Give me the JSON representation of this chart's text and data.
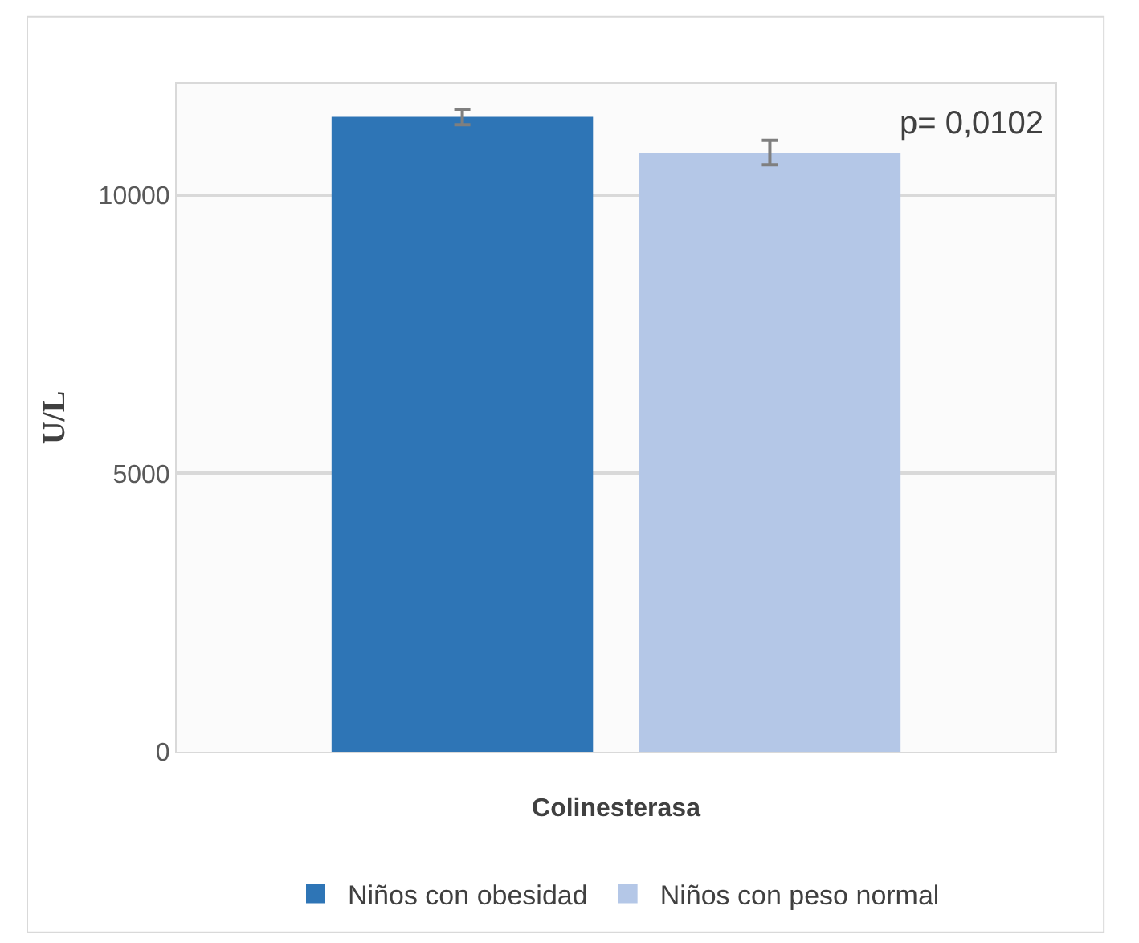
{
  "chart_data": {
    "type": "bar",
    "ylabel": "U/L",
    "categories": [
      "Colinesterasa"
    ],
    "series": [
      {
        "name": "Niños con obesidad",
        "color": "#2e75b6",
        "values": [
          11400
        ],
        "errors": [
          140
        ]
      },
      {
        "name": "Niños con peso normal",
        "color": "#b4c7e7",
        "values": [
          10760
        ],
        "errors": [
          220
        ]
      }
    ],
    "ylim": [
      0,
      12000
    ],
    "yticks": [
      0,
      5000,
      10000
    ],
    "grid": "y",
    "legend": "bottom",
    "annotations": [
      "p= 0,0102"
    ]
  }
}
